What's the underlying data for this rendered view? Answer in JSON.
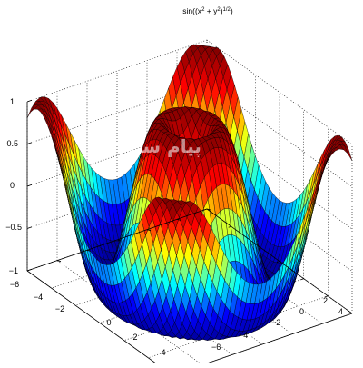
{
  "chart_data": {
    "type": "surface",
    "title": "sin((x² + y²)¹ᐟ²)",
    "title_parts": {
      "prefix": "sin((x",
      "sup1": "2",
      "middle": " + y",
      "sup2": "2",
      "close": ")",
      "sup3": "1/2",
      "suffix": ")"
    },
    "function": "z = sin(sqrt(x^2 + y^2))",
    "x_range": [
      -6,
      6
    ],
    "y_range": [
      -6,
      6
    ],
    "zlim": [
      -1,
      1
    ],
    "x_ticks": [
      {
        "value": -6,
        "label": "−6"
      },
      {
        "value": -4,
        "label": "−4"
      },
      {
        "value": -2,
        "label": "−2"
      },
      {
        "value": 0,
        "label": "0"
      },
      {
        "value": 2,
        "label": "2"
      },
      {
        "value": 4,
        "label": "4"
      }
    ],
    "y_ticks": [
      {
        "value": -6,
        "label": "−6"
      },
      {
        "value": -4,
        "label": "−4"
      },
      {
        "value": -2,
        "label": "−2"
      },
      {
        "value": 0,
        "label": "0"
      },
      {
        "value": 2,
        "label": "2"
      },
      {
        "value": 4,
        "label": "4"
      }
    ],
    "z_ticks": [
      {
        "value": 1,
        "label": "1"
      },
      {
        "value": 0.5,
        "label": "0.5"
      },
      {
        "value": 0,
        "label": "0"
      },
      {
        "value": -0.5,
        "label": "−0.5"
      },
      {
        "value": -1,
        "label": "−1"
      }
    ],
    "grid": true,
    "colormap": "jet",
    "colormap_stops": [
      "#00008f",
      "#0000ff",
      "#00ffff",
      "#ffff00",
      "#ff0000",
      "#800000"
    ],
    "edge_color": "#000000",
    "watermark": "پیام سرا"
  }
}
